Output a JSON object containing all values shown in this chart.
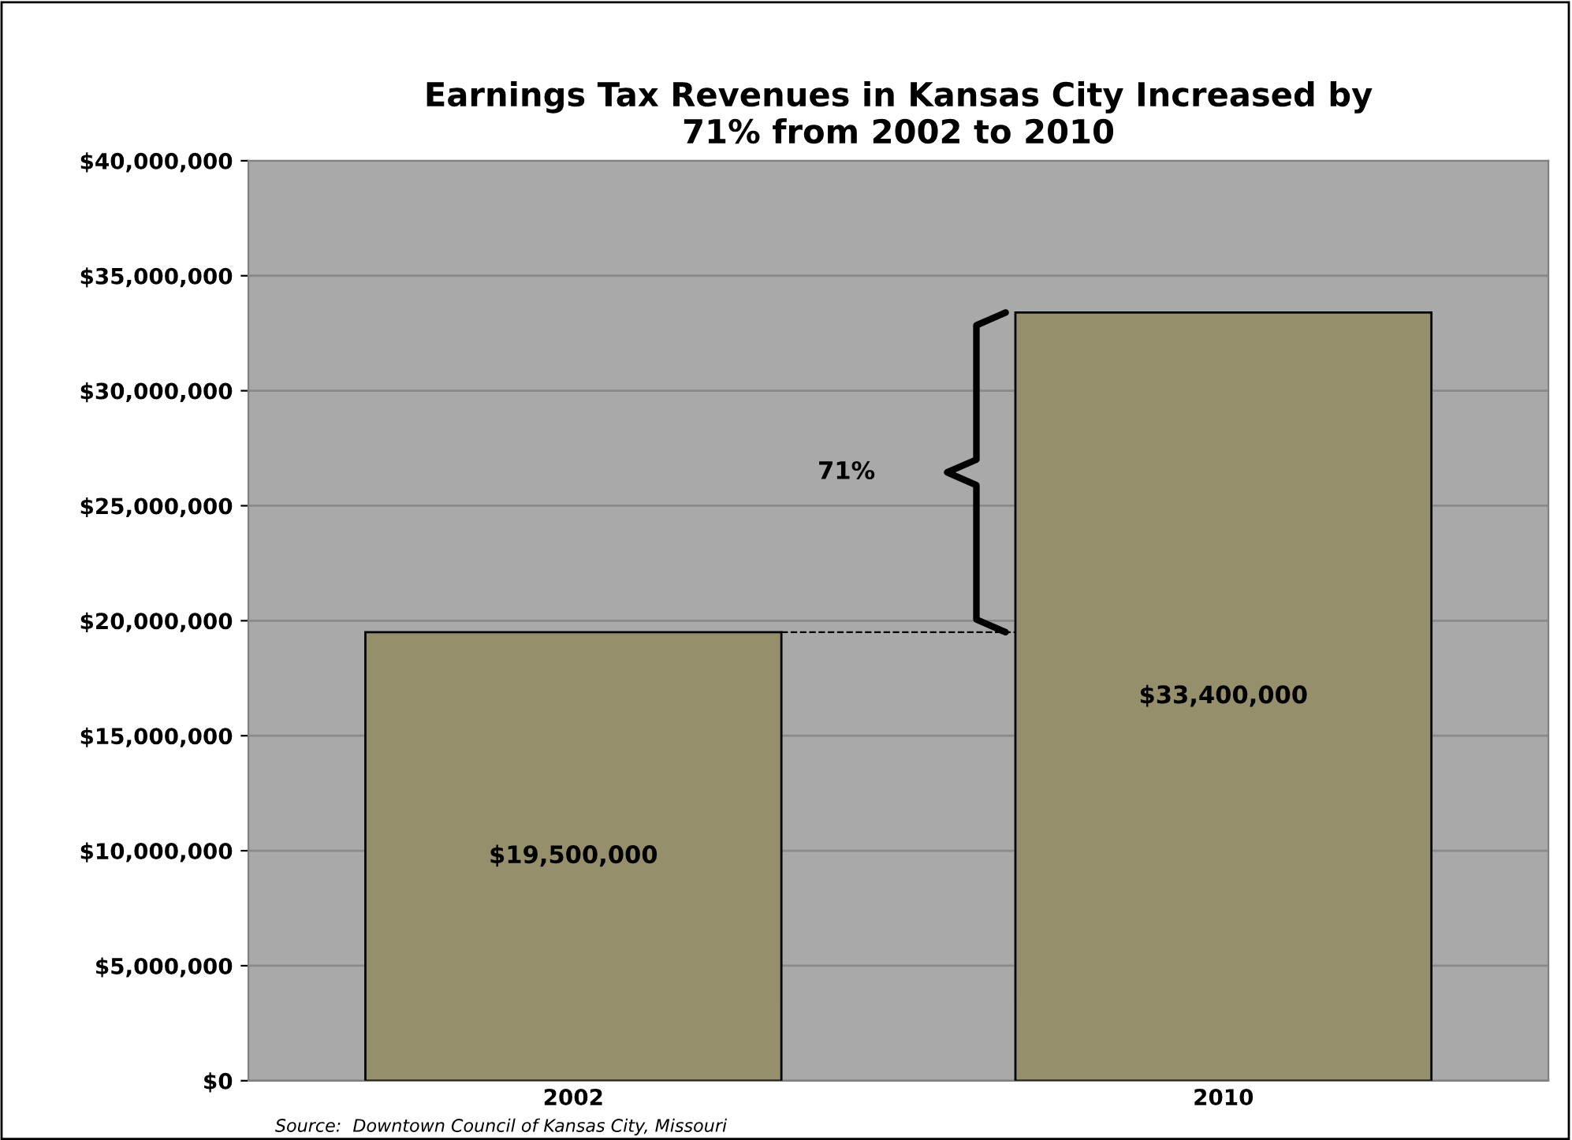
{
  "chart_data": {
    "type": "bar",
    "title": "Earnings Tax Revenues in Kansas City Increased by\n71% from 2002 to 2010",
    "categories": [
      "2002",
      "2010"
    ],
    "values": [
      19500000,
      33400000
    ],
    "color": "#958f6c",
    "value_labels": [
      "$19,500,000",
      "$33,400,000"
    ],
    "ylim": [
      0,
      40000000
    ],
    "yticks": [
      {
        "value": 0,
        "label": "$0"
      },
      {
        "value": 5000000,
        "label": "$5,000,000"
      },
      {
        "value": 10000000,
        "label": "$10,000,000"
      },
      {
        "value": 15000000,
        "label": "$15,000,000"
      },
      {
        "value": 20000000,
        "label": "$20,000,000"
      },
      {
        "value": 25000000,
        "label": "$25,000,000"
      },
      {
        "value": 30000000,
        "label": "$30,000,000"
      },
      {
        "value": 35000000,
        "label": "$35,000,000"
      },
      {
        "value": 40000000,
        "label": "$40,000,000"
      }
    ],
    "grid": "y",
    "ref_lines": [
      {
        "axis": "y",
        "value": 19500000,
        "color": "#000000",
        "line_style": "dashed"
      }
    ],
    "annotations": [
      "71%",
      "Source:  Downtown Council of Kansas City, Missouri"
    ]
  }
}
